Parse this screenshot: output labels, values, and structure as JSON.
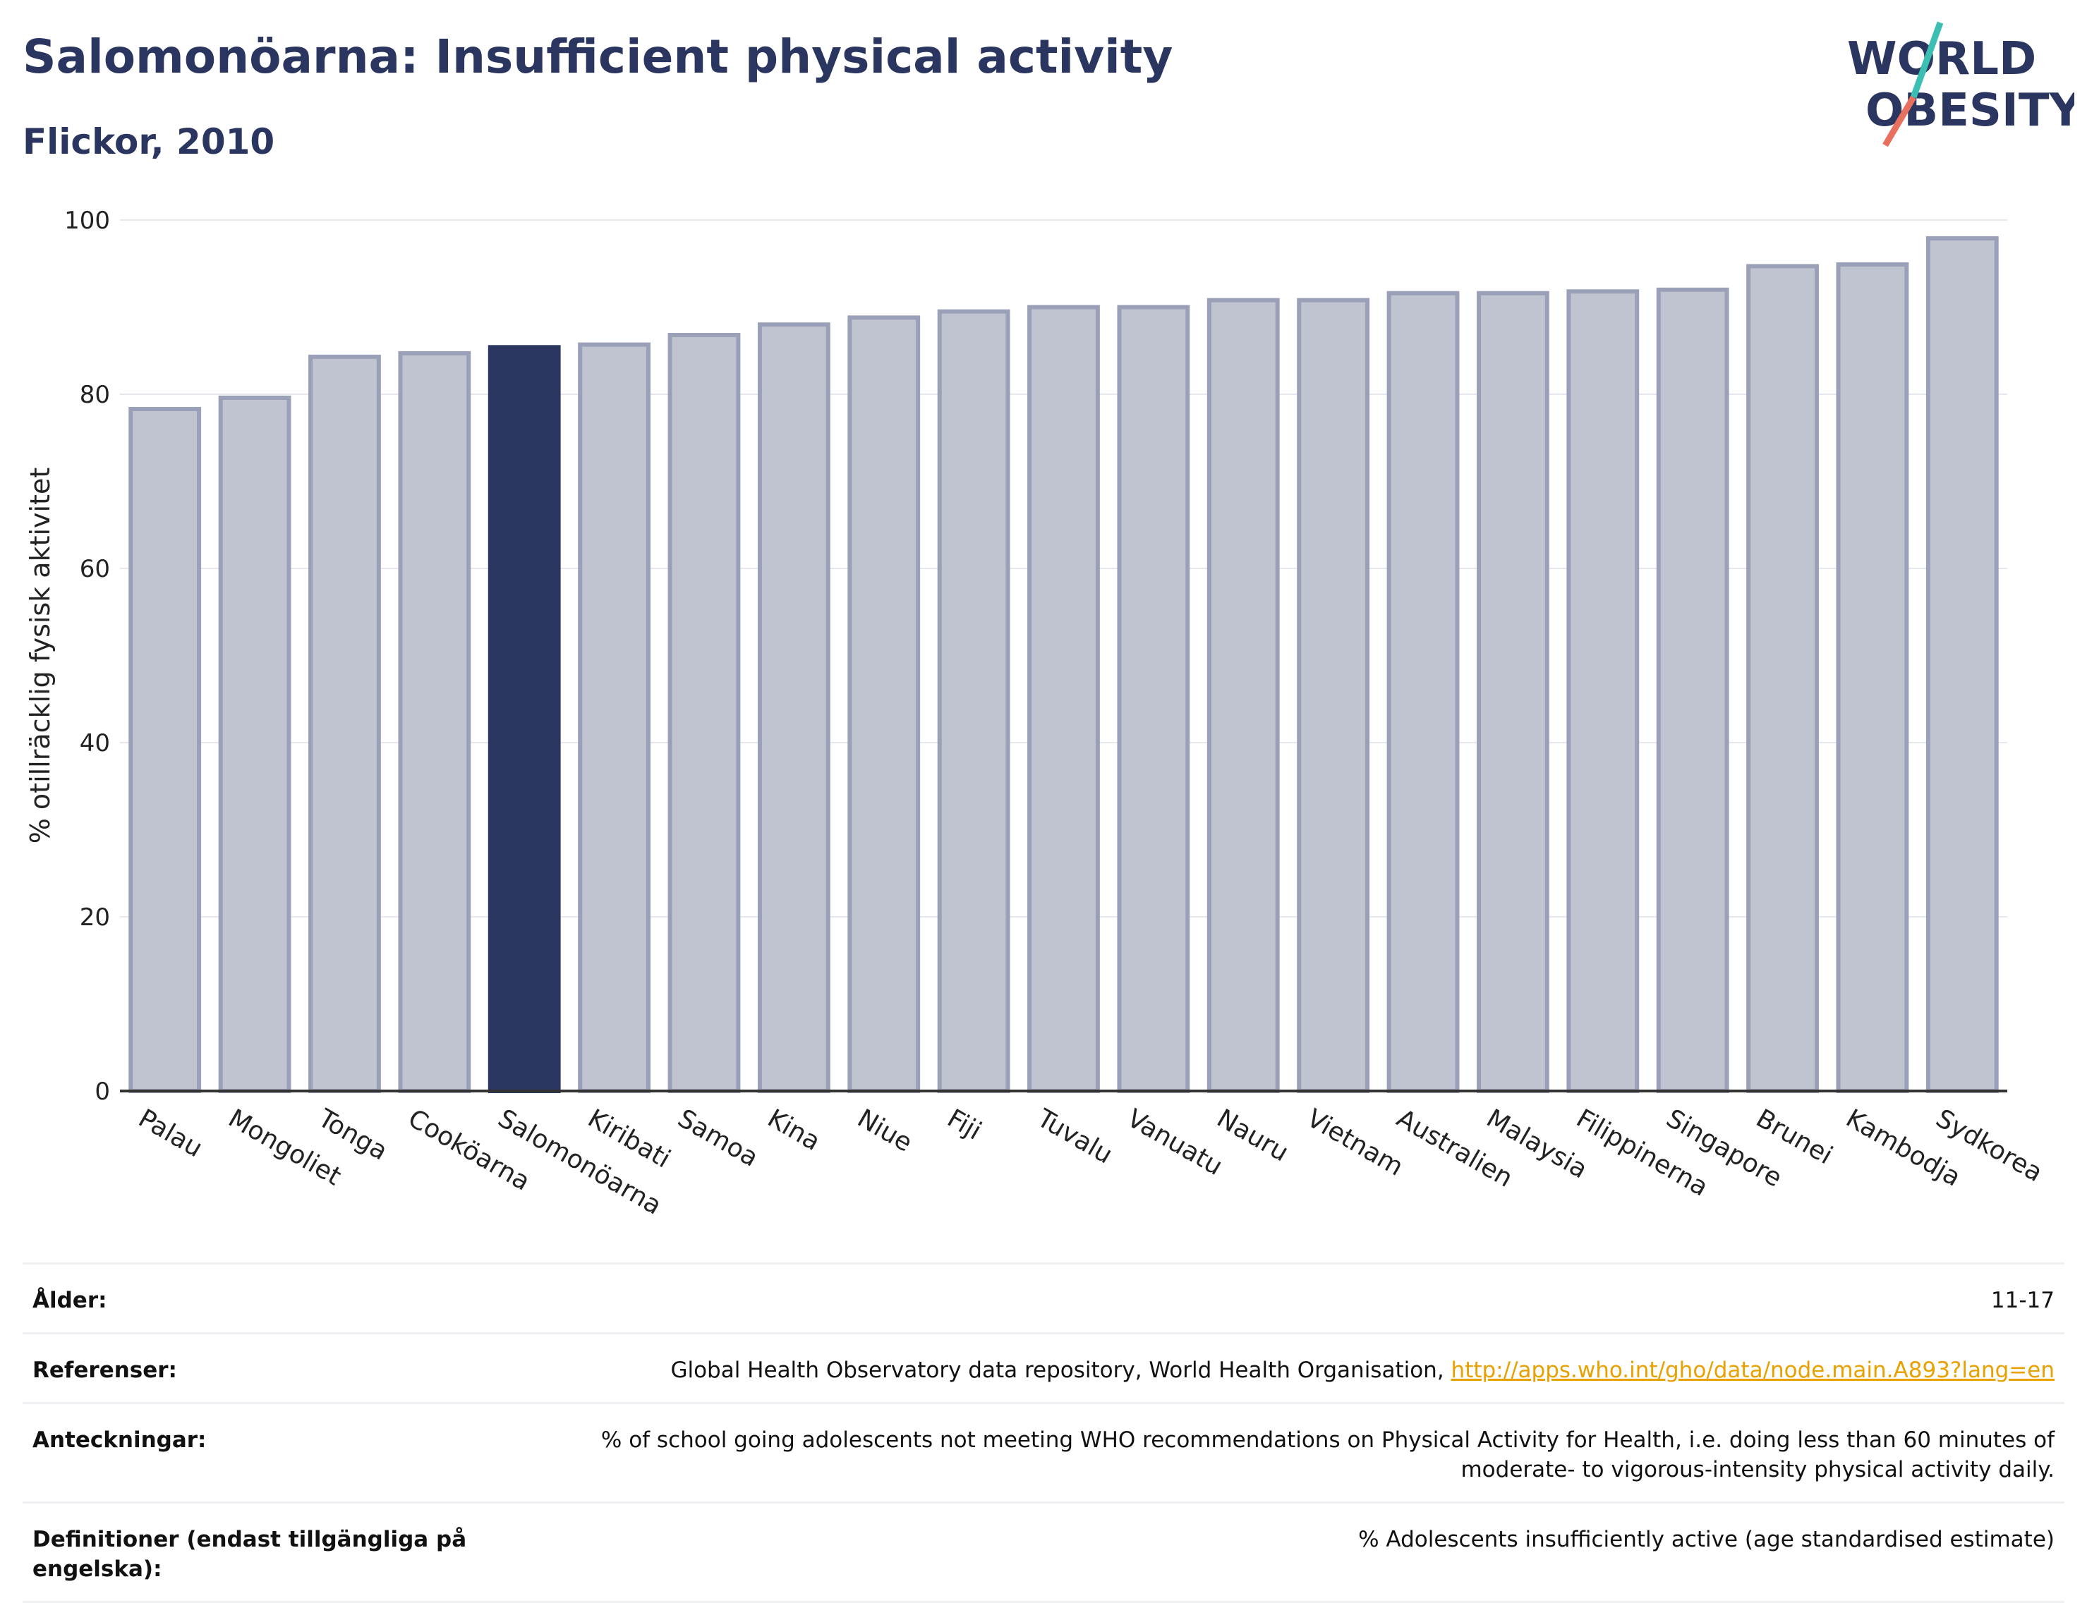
{
  "header": {
    "title": "Salomonöarna: Insufficient physical activity",
    "subtitle": "Flickor, 2010"
  },
  "logo": {
    "line1": "WORLD",
    "line2": "OBESITY"
  },
  "chart_data": {
    "type": "bar",
    "ylabel": "% otillräcklig fysisk aktivitet",
    "ylim": [
      0,
      100
    ],
    "yticks": [
      0,
      20,
      40,
      60,
      80,
      100
    ],
    "grid": true,
    "highlight": "Salomonöarna",
    "categories": [
      "Palau",
      "Mongoliet",
      "Tonga",
      "Cooköarna",
      "Salomonöarna",
      "Kiribati",
      "Samoa",
      "Kina",
      "Niue",
      "Fiji",
      "Tuvalu",
      "Vanuatu",
      "Nauru",
      "Vietnam",
      "Australien",
      "Malaysia",
      "Filippinerna",
      "Singapore",
      "Brunei",
      "Kambodja",
      "Sydkorea"
    ],
    "values": [
      78.3,
      79.6,
      84.3,
      84.7,
      85.4,
      85.7,
      86.8,
      88.0,
      88.8,
      89.5,
      90.0,
      90.0,
      90.8,
      90.8,
      91.6,
      91.6,
      91.8,
      92.0,
      94.7,
      94.9,
      97.9
    ],
    "colors": {
      "bar": "#c0c3d0",
      "bar_edge": "#9aa0b8",
      "highlight": "#2b3660",
      "axis": "#333333",
      "grid": "#e6e8ee"
    }
  },
  "meta": {
    "age_label": "Ålder:",
    "age_value": "11-17",
    "refs_label": "Referenser:",
    "refs_value": "Global Health Observatory data repository, World Health Organisation, ",
    "refs_link": "http://apps.who.int/gho/data/node.main.A893?lang=en",
    "notes_label": "Anteckningar:",
    "notes_value": "% of school going adolescents not meeting WHO recommendations on Physical Activity for Health, i.e. doing less than 60 minutes of moderate- to vigorous-intensity physical activity daily.",
    "defs_label": "Definitioner (endast tillgängliga på engelska):",
    "defs_value": "% Adolescents insufficiently active (age standardised estimate)"
  }
}
